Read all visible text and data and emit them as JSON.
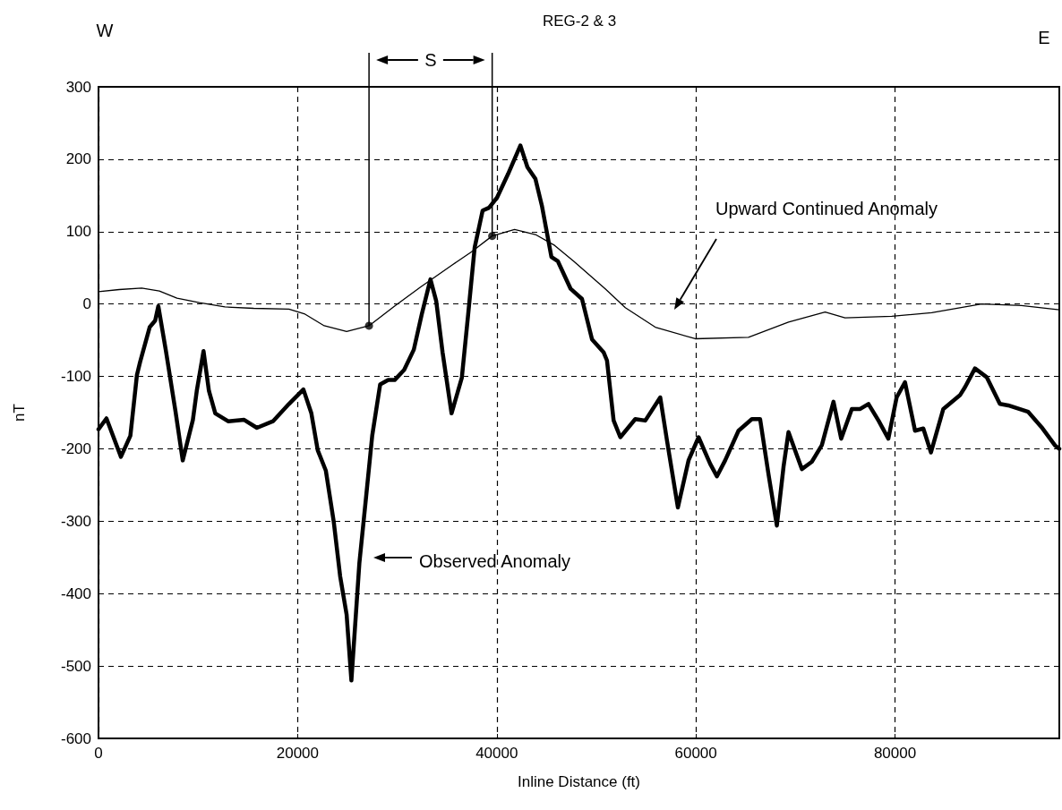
{
  "chart_data": {
    "type": "line",
    "title": "REG-2 & 3",
    "xlabel": "Inline Distance (ft)",
    "ylabel": "nT",
    "xlim": [
      0,
      96500
    ],
    "xticks": [
      0,
      20000,
      40000,
      60000,
      80000
    ],
    "ylim": [
      -600,
      300
    ],
    "yticks": [
      -600,
      -500,
      -400,
      -300,
      -200,
      -100,
      0,
      100,
      200,
      300
    ],
    "grid": true,
    "marker": "none",
    "line_style": "solid",
    "series": [
      {
        "color": "#000000",
        "x": [
          0,
          800,
          2250,
          3200,
          3860,
          4180,
          5140,
          5690,
          6010,
          6750,
          7720,
          8460,
          9480,
          9870,
          10550,
          11090,
          11730,
          13020,
          14630,
          15910,
          17520,
          19130,
          20580,
          21380,
          22020,
          22830,
          23630,
          24270,
          24920,
          25400,
          26200,
          26850,
          27490,
          28290,
          29100,
          29740,
          30700,
          31670,
          32470,
          33340,
          33920,
          34560,
          35460,
          36490,
          37130,
          37780,
          38580,
          39220,
          40030,
          41150,
          42370,
          43080,
          43880,
          44530,
          45490,
          46140,
          47420,
          48560,
          49570,
          50740,
          51070,
          51740,
          52410,
          53910,
          54920,
          56420,
          57090,
          58190,
          59260,
          60270,
          61440,
          62110,
          62940,
          64280,
          65620,
          66450,
          67290,
          68130,
          68800,
          69300,
          70640,
          71640,
          72650,
          73820,
          74590,
          75660,
          76500,
          77330,
          78340,
          79330,
          80160,
          81000,
          82010,
          82840,
          83610,
          84850,
          86520,
          87020,
          88030,
          89200,
          90530,
          91370,
          93380,
          94710,
          96050,
          96500
        ],
        "values": [
          -173,
          -158,
          -211,
          -182,
          -98,
          -80,
          -32,
          -23,
          -3,
          -63,
          -147,
          -216,
          -160,
          -120,
          -65,
          -120,
          -151,
          -162,
          -160,
          -171,
          -162,
          -138,
          -118,
          -151,
          -202,
          -230,
          -301,
          -376,
          -429,
          -520,
          -358,
          -270,
          -182,
          -111,
          -105,
          -105,
          -91,
          -63,
          -14,
          34,
          4,
          -67,
          -151,
          -102,
          -14,
          78,
          129,
          133,
          147,
          180,
          219,
          189,
          173,
          136,
          65,
          59,
          21,
          7,
          -49,
          -67,
          -78,
          -161,
          -184,
          -159,
          -161,
          -129,
          -188,
          -281,
          -216,
          -184,
          -221,
          -238,
          -216,
          -175,
          -159,
          -159,
          -235,
          -306,
          -225,
          -177,
          -228,
          -218,
          -195,
          -135,
          -186,
          -145,
          -145,
          -138,
          -161,
          -186,
          -129,
          -108,
          -175,
          -172,
          -205,
          -145,
          -126,
          -115,
          -89,
          -101,
          -138,
          -140,
          -149,
          -170,
          -195,
          -200
        ]
      },
      {
        "color": "#000000",
        "x": [
          0,
          2090,
          4340,
          6110,
          7880,
          10130,
          12700,
          15590,
          19130,
          20740,
          22670,
          24920,
          27170,
          29740,
          32310,
          35530,
          37450,
          39540,
          41790,
          43880,
          45810,
          47740,
          50900,
          52910,
          55920,
          59930,
          65280,
          69300,
          72980,
          74980,
          79670,
          83680,
          88690,
          92700,
          96500
        ],
        "values": [
          17,
          20,
          22,
          18,
          8,
          2,
          -4,
          -6,
          -7,
          -14,
          -30,
          -38,
          -30,
          -3,
          23,
          54,
          72,
          94,
          103,
          96,
          81,
          59,
          21,
          -5,
          -32,
          -48,
          -46,
          -25,
          -11,
          -19,
          -17,
          -12,
          0,
          -2,
          -8
        ]
      },
      {
        "type": "scatter",
        "marker": "circle",
        "color": "#000000",
        "x": [
          27170,
          39540
        ],
        "values": [
          -30,
          94
        ]
      }
    ],
    "ref_lines": [
      {
        "axis": "x",
        "value": 27170
      },
      {
        "axis": "x",
        "value": 39540
      }
    ],
    "annotations": [
      "W",
      "E",
      "S",
      "Observed Anomaly",
      "Upward Continued Anomaly"
    ]
  }
}
